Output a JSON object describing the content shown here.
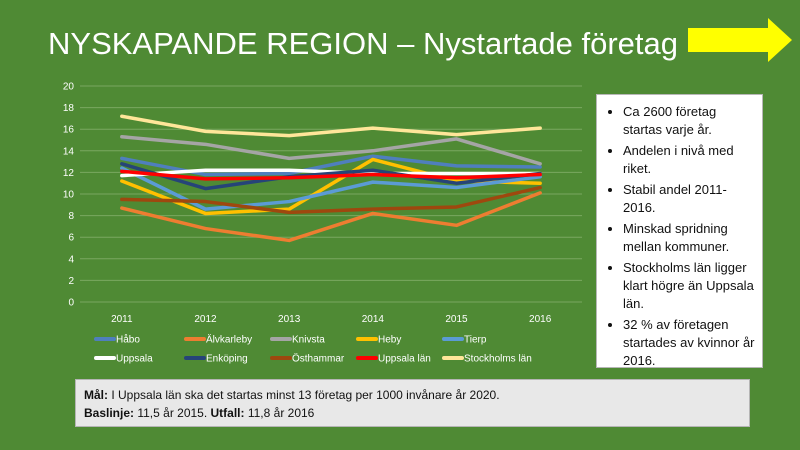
{
  "title": "NYSKAPANDE REGION – Nystartade företag",
  "bullets": [
    "Ca 2600 företag startas varje år.",
    "Andelen i nivå med riket.",
    "Stabil andel 2011-2016.",
    "Minskad spridning mellan kommuner.",
    "Stockholms län ligger klart högre än Uppsala län.",
    "32 % av företagen startades av kvinnor år 2016."
  ],
  "goal": {
    "mal_label": "Mål:",
    "mal_text": " I Uppsala län ska det startas minst 13 företag per 1000 invånare år 2020.",
    "baslinje_label": "Baslinje:",
    "baslinje_text": " 11,5 år 2015. ",
    "utfall_label": "Utfall:",
    "utfall_text": " 11,8 år 2016"
  },
  "colors": {
    "background": "#4f8a34",
    "arrow": "#ffff00",
    "gridline": "#7aa760",
    "axis_text": "#ffffff"
  },
  "chart_data": {
    "type": "line",
    "x": [
      "2011",
      "2012",
      "2013",
      "2014",
      "2015",
      "2016"
    ],
    "ylim": [
      0,
      20
    ],
    "yticks": [
      0,
      2,
      4,
      6,
      8,
      10,
      12,
      14,
      16,
      18,
      20
    ],
    "grid": true,
    "legend_position": "bottom",
    "series": [
      {
        "name": "Håbo",
        "color": "#4f7fbd",
        "values": [
          13.3,
          11.8,
          11.9,
          13.5,
          12.6,
          12.5
        ]
      },
      {
        "name": "Älvkarleby",
        "color": "#ed7d31",
        "values": [
          8.7,
          6.8,
          5.7,
          8.2,
          7.1,
          10.1
        ]
      },
      {
        "name": "Knivsta",
        "color": "#a5a5a5",
        "values": [
          15.3,
          14.6,
          13.3,
          14.0,
          15.1,
          12.8
        ]
      },
      {
        "name": "Heby",
        "color": "#ffc000",
        "values": [
          11.2,
          8.2,
          8.6,
          13.2,
          11.2,
          11.0
        ]
      },
      {
        "name": "Tierp",
        "color": "#5b9bd5",
        "values": [
          12.4,
          8.6,
          9.3,
          11.1,
          10.6,
          11.6
        ]
      },
      {
        "name": "Uppsala",
        "color": "#ffffff",
        "values": [
          11.7,
          12.2,
          12.2,
          11.9,
          11.9,
          11.9
        ]
      },
      {
        "name": "Enköping",
        "color": "#264478",
        "values": [
          12.8,
          10.5,
          11.6,
          12.2,
          11.0,
          11.9
        ]
      },
      {
        "name": "Östhammar",
        "color": "#9e480e",
        "values": [
          9.5,
          9.3,
          8.3,
          8.6,
          8.8,
          10.6
        ]
      },
      {
        "name": "Uppsala län",
        "color": "#ff0000",
        "values": [
          12.1,
          11.4,
          11.5,
          11.8,
          11.5,
          11.8
        ]
      },
      {
        "name": "Stockholms län",
        "color": "#ffe699",
        "values": [
          17.2,
          15.8,
          15.4,
          16.1,
          15.5,
          16.1
        ]
      }
    ]
  }
}
